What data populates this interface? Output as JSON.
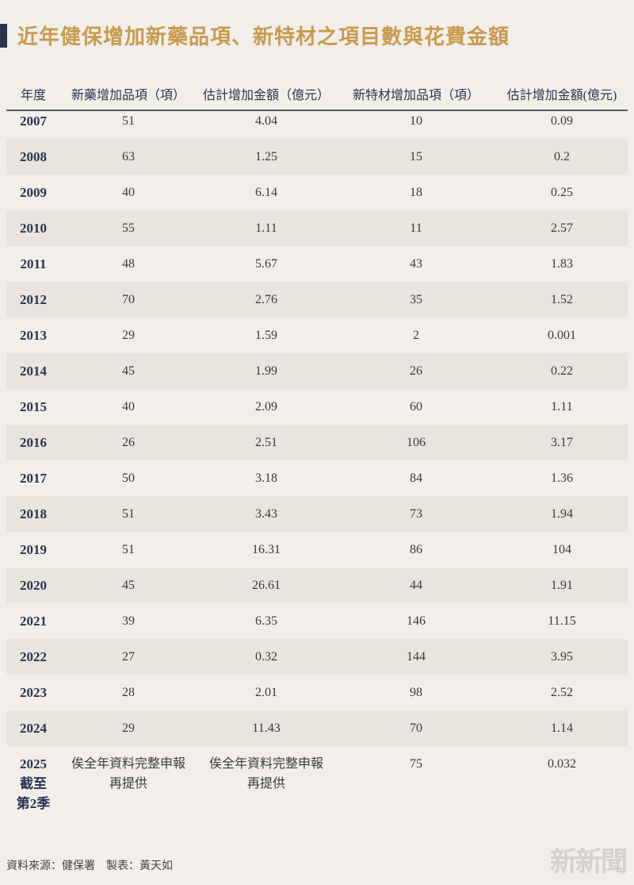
{
  "header": {
    "title": "近年健保增加新藥品項、新特材之項目數與花費金額"
  },
  "table": {
    "columns": [
      "年度",
      "新藥增加品項（項）",
      "估計增加金額（億元）",
      "新特材增加品項（項）",
      "估計增加金額(億元)"
    ],
    "rows": [
      [
        "2007",
        "51",
        "4.04",
        "10",
        "0.09"
      ],
      [
        "2008",
        "63",
        "1.25",
        "15",
        "0.2"
      ],
      [
        "2009",
        "40",
        "6.14",
        "18",
        "0.25"
      ],
      [
        "2010",
        "55",
        "1.11",
        "11",
        "2.57"
      ],
      [
        "2011",
        "48",
        "5.67",
        "43",
        "1.83"
      ],
      [
        "2012",
        "70",
        "2.76",
        "35",
        "1.52"
      ],
      [
        "2013",
        "29",
        "1.59",
        "2",
        "0.001"
      ],
      [
        "2014",
        "45",
        "1.99",
        "26",
        "0.22"
      ],
      [
        "2015",
        "40",
        "2.09",
        "60",
        "1.11"
      ],
      [
        "2016",
        "26",
        "2.51",
        "106",
        "3.17"
      ],
      [
        "2017",
        "50",
        "3.18",
        "84",
        "1.36"
      ],
      [
        "2018",
        "51",
        "3.43",
        "73",
        "1.94"
      ],
      [
        "2019",
        "51",
        "16.31",
        "86",
        "104"
      ],
      [
        "2020",
        "45",
        "26.61",
        "44",
        "1.91"
      ],
      [
        "2021",
        "39",
        "6.35",
        "146",
        "11.15"
      ],
      [
        "2022",
        "27",
        "0.32",
        "144",
        "3.95"
      ],
      [
        "2023",
        "28",
        "2.01",
        "98",
        "2.52"
      ],
      [
        "2024",
        "29",
        "11.43",
        "70",
        "1.14"
      ],
      [
        [
          "2025",
          "截至",
          "第2季"
        ],
        "俟全年資料完整申報再提供",
        "俟全年資料完整申報再提供",
        "75",
        "0.032"
      ]
    ]
  },
  "footer": {
    "source": "資料來源：健保署　製表：黃天如",
    "logo": "新新聞"
  }
}
